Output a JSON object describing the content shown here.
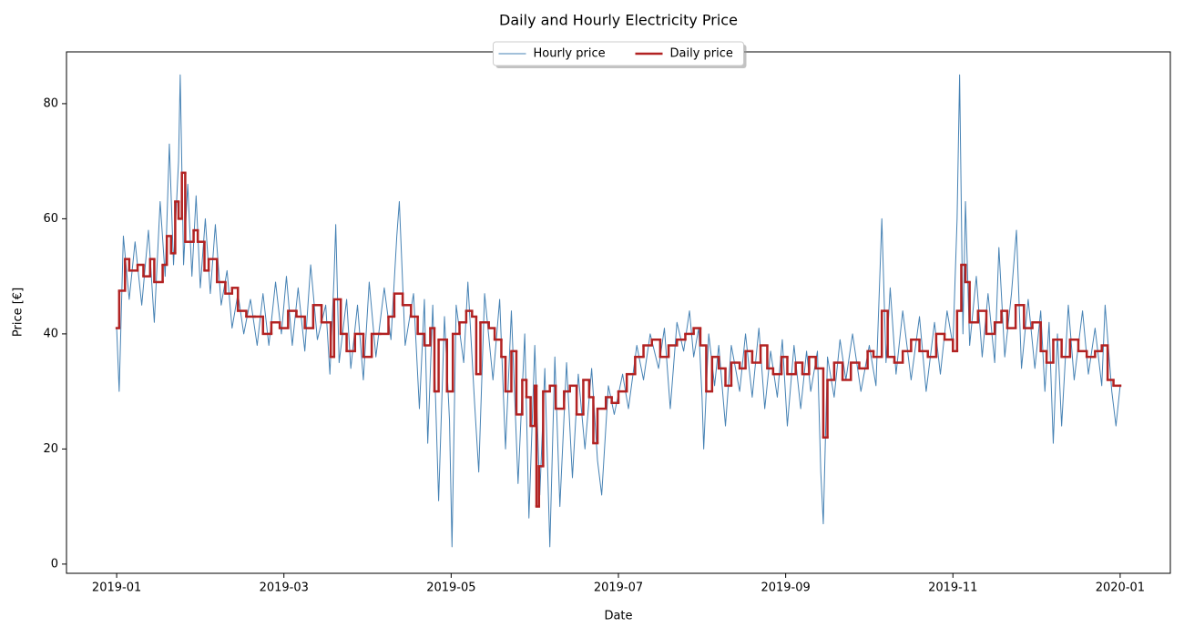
{
  "chart_data": {
    "type": "line",
    "title": "Daily and Hourly Electricity Price",
    "x_label": "Date",
    "y_label": "Price [€]",
    "legend": "upper center",
    "grid": false,
    "xlim": [
      -0.6,
      12.6
    ],
    "ylim": [
      -1.6,
      89
    ],
    "xticks": [
      {
        "value": 0,
        "label": "2019-01"
      },
      {
        "value": 2,
        "label": "2019-03"
      },
      {
        "value": 4,
        "label": "2019-05"
      },
      {
        "value": 6,
        "label": "2019-07"
      },
      {
        "value": 8,
        "label": "2019-09"
      },
      {
        "value": 10,
        "label": "2019-11"
      },
      {
        "value": 12,
        "label": "2020-01"
      }
    ],
    "yticks": [
      0,
      20,
      40,
      60,
      80
    ],
    "series": [
      {
        "name": "Hourly price",
        "color": "#4682b4",
        "width": 1,
        "step": false,
        "x": [
          0.0,
          0.03,
          0.08,
          0.15,
          0.22,
          0.3,
          0.38,
          0.45,
          0.52,
          0.58,
          0.63,
          0.68,
          0.74,
          0.76,
          0.8,
          0.85,
          0.9,
          0.95,
          1.0,
          1.06,
          1.12,
          1.18,
          1.25,
          1.32,
          1.38,
          1.45,
          1.52,
          1.6,
          1.68,
          1.75,
          1.82,
          1.9,
          1.97,
          2.03,
          2.1,
          2.17,
          2.25,
          2.32,
          2.4,
          2.5,
          2.55,
          2.6,
          2.62,
          2.66,
          2.75,
          2.8,
          2.88,
          2.95,
          3.02,
          3.1,
          3.2,
          3.28,
          3.35,
          3.38,
          3.45,
          3.55,
          3.62,
          3.68,
          3.72,
          3.78,
          3.85,
          3.92,
          3.98,
          4.01,
          4.06,
          4.15,
          4.2,
          4.28,
          4.33,
          4.4,
          4.5,
          4.58,
          4.65,
          4.72,
          4.8,
          4.88,
          4.93,
          5.0,
          5.06,
          5.12,
          5.18,
          5.24,
          5.3,
          5.38,
          5.45,
          5.52,
          5.6,
          5.68,
          5.75,
          5.8,
          5.88,
          5.95,
          6.05,
          6.12,
          6.22,
          6.3,
          6.38,
          6.48,
          6.55,
          6.62,
          6.7,
          6.78,
          6.85,
          6.9,
          6.96,
          7.0,
          7.02,
          7.08,
          7.15,
          7.2,
          7.28,
          7.35,
          7.45,
          7.52,
          7.6,
          7.68,
          7.75,
          7.82,
          7.9,
          7.96,
          8.02,
          8.1,
          8.18,
          8.25,
          8.3,
          8.38,
          8.42,
          8.45,
          8.5,
          8.58,
          8.65,
          8.72,
          8.8,
          8.9,
          9.0,
          9.08,
          9.15,
          9.2,
          9.25,
          9.32,
          9.4,
          9.5,
          9.6,
          9.68,
          9.78,
          9.85,
          9.93,
          10.0,
          10.05,
          10.08,
          10.12,
          10.15,
          10.2,
          10.28,
          10.35,
          10.42,
          10.5,
          10.55,
          10.62,
          10.7,
          10.76,
          10.82,
          10.9,
          10.98,
          11.05,
          11.1,
          11.15,
          11.2,
          11.25,
          11.3,
          11.38,
          11.45,
          11.55,
          11.62,
          11.7,
          11.78,
          11.82,
          11.9,
          11.95,
          12.0
        ],
        "values": [
          41,
          30,
          57,
          46,
          56,
          45,
          58,
          42,
          63,
          50,
          73,
          52,
          70,
          85,
          52,
          66,
          50,
          64,
          48,
          60,
          47,
          59,
          45,
          51,
          41,
          47,
          40,
          46,
          38,
          47,
          38,
          49,
          40,
          50,
          38,
          48,
          37,
          52,
          39,
          45,
          33,
          50,
          59,
          35,
          46,
          34,
          45,
          32,
          49,
          36,
          48,
          39,
          57,
          63,
          38,
          47,
          27,
          46,
          21,
          45,
          11,
          43,
          25,
          3,
          45,
          35,
          49,
          28,
          16,
          47,
          32,
          46,
          20,
          44,
          14,
          40,
          8,
          38,
          12,
          34,
          3,
          36,
          10,
          35,
          15,
          33,
          20,
          34,
          18,
          12,
          31,
          26,
          33,
          27,
          38,
          32,
          40,
          34,
          41,
          27,
          42,
          37,
          44,
          36,
          41,
          29,
          20,
          40,
          31,
          38,
          24,
          38,
          30,
          40,
          29,
          41,
          27,
          37,
          29,
          39,
          24,
          38,
          27,
          37,
          30,
          37,
          16,
          7,
          36,
          29,
          39,
          32,
          40,
          30,
          38,
          31,
          60,
          35,
          48,
          33,
          44,
          32,
          43,
          30,
          42,
          33,
          44,
          38,
          60,
          85,
          40,
          63,
          38,
          50,
          36,
          47,
          35,
          55,
          36,
          47,
          58,
          34,
          46,
          34,
          44,
          30,
          42,
          21,
          40,
          24,
          45,
          32,
          44,
          33,
          41,
          31,
          45,
          30,
          24,
          31
        ]
      },
      {
        "name": "Daily price",
        "color": "#b22222",
        "width": 2.5,
        "step": true,
        "x": [
          0.0,
          0.03,
          0.1,
          0.15,
          0.25,
          0.32,
          0.4,
          0.45,
          0.55,
          0.6,
          0.65,
          0.7,
          0.74,
          0.78,
          0.82,
          0.92,
          0.97,
          1.05,
          1.1,
          1.2,
          1.3,
          1.38,
          1.45,
          1.55,
          1.65,
          1.75,
          1.85,
          1.95,
          2.05,
          2.15,
          2.25,
          2.35,
          2.45,
          2.52,
          2.56,
          2.6,
          2.68,
          2.75,
          2.85,
          2.95,
          3.05,
          3.15,
          3.25,
          3.32,
          3.42,
          3.52,
          3.6,
          3.68,
          3.75,
          3.8,
          3.85,
          3.95,
          4.02,
          4.1,
          4.18,
          4.25,
          4.3,
          4.35,
          4.45,
          4.52,
          4.6,
          4.65,
          4.72,
          4.78,
          4.85,
          4.9,
          4.95,
          5.0,
          5.02,
          5.05,
          5.1,
          5.18,
          5.25,
          5.35,
          5.42,
          5.5,
          5.58,
          5.65,
          5.7,
          5.75,
          5.85,
          5.92,
          6.0,
          6.1,
          6.2,
          6.3,
          6.4,
          6.5,
          6.6,
          6.7,
          6.8,
          6.9,
          6.98,
          7.05,
          7.12,
          7.2,
          7.28,
          7.35,
          7.45,
          7.52,
          7.6,
          7.7,
          7.78,
          7.85,
          7.95,
          8.02,
          8.12,
          8.2,
          8.28,
          8.36,
          8.45,
          8.5,
          8.58,
          8.68,
          8.78,
          8.88,
          8.98,
          9.05,
          9.15,
          9.22,
          9.3,
          9.4,
          9.5,
          9.6,
          9.7,
          9.8,
          9.9,
          10.0,
          10.05,
          10.1,
          10.15,
          10.2,
          10.3,
          10.4,
          10.5,
          10.58,
          10.65,
          10.75,
          10.85,
          10.95,
          11.05,
          11.12,
          11.2,
          11.3,
          11.4,
          11.5,
          11.6,
          11.7,
          11.78,
          11.85,
          11.92,
          12.0
        ],
        "values": [
          41,
          47.5,
          53,
          51,
          52,
          50,
          53,
          49,
          52,
          57,
          54,
          63,
          60,
          68,
          56,
          58,
          56,
          51,
          53,
          49,
          47,
          48,
          44,
          43,
          43,
          40,
          42,
          41,
          44,
          43,
          41,
          45,
          42,
          42,
          36,
          46,
          40,
          37,
          40,
          36,
          40,
          40,
          43,
          47,
          45,
          43,
          40,
          38,
          41,
          30,
          39,
          30,
          40,
          42,
          44,
          43,
          33,
          42,
          41,
          39,
          36,
          30,
          37,
          26,
          32,
          29,
          24,
          31,
          10,
          17,
          30,
          31,
          27,
          30,
          31,
          26,
          32,
          29,
          21,
          27,
          29,
          28,
          30,
          33,
          36,
          38,
          39,
          36,
          38,
          39,
          40,
          41,
          38,
          30,
          36,
          34,
          31,
          35,
          34,
          37,
          35,
          38,
          34,
          33,
          36,
          33,
          35,
          33,
          36,
          34,
          22,
          32,
          35,
          32,
          35,
          34,
          37,
          36,
          44,
          36,
          35,
          37,
          39,
          37,
          36,
          40,
          39,
          37,
          44,
          52,
          49,
          42,
          44,
          40,
          42,
          44,
          41,
          45,
          41,
          42,
          37,
          35,
          39,
          36,
          39,
          37,
          36,
          37,
          38,
          32,
          31,
          31
        ]
      }
    ]
  }
}
